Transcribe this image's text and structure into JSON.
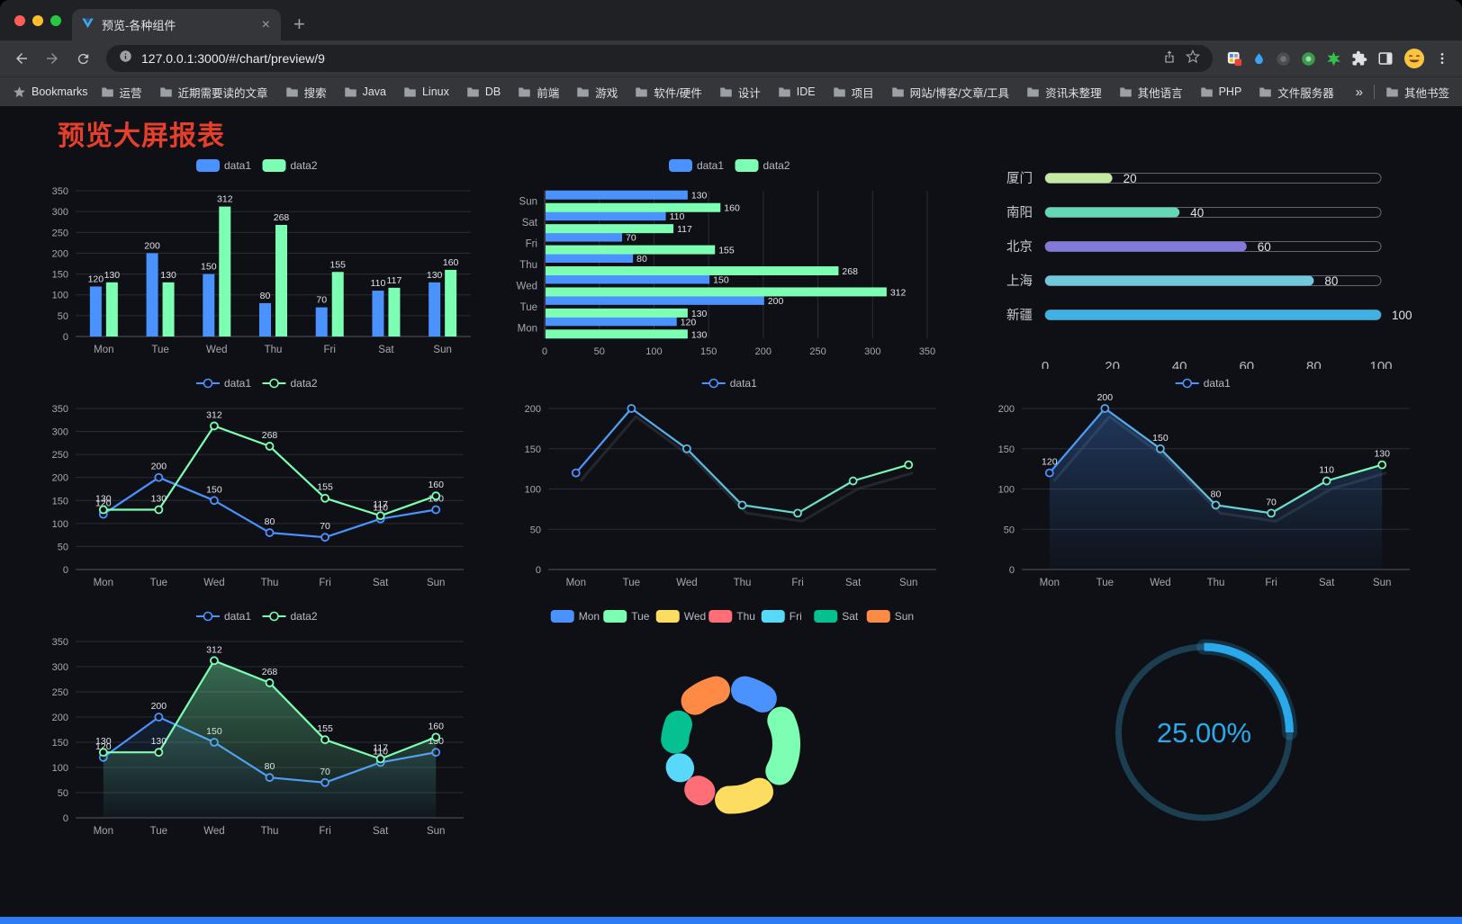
{
  "browser": {
    "traffic_lights": [
      "#ff5f57",
      "#febc2e",
      "#28c840"
    ],
    "tab": {
      "title": "预览-各种组件",
      "close_glyph": "×",
      "new_tab_glyph": "+"
    },
    "address": {
      "url": "127.0.0.1:3000/#/chart/preview/9"
    },
    "bookmarks_bar": {
      "label": "Bookmarks",
      "items": [
        "运营",
        "近期需要读的文章",
        "搜索",
        "Java",
        "Linux",
        "DB",
        "前端",
        "游戏",
        "软件/硬件",
        "设计",
        "IDE",
        "项目",
        "网站/博客/文章/工具",
        "资讯未整理",
        "其他语言",
        "PHP",
        "文件服务器"
      ],
      "overflow_glyph": "»",
      "other_bookmarks": "其他书签"
    }
  },
  "page": {
    "title": "预览大屏报表",
    "title_color": "#e6402c",
    "background": "#0e1015",
    "footer_bar_color": "#2e7bf6"
  },
  "chart_data": [
    {
      "id": "grouped-bar",
      "type": "bar",
      "legend": [
        {
          "name": "data1",
          "color": "#4992ff"
        },
        {
          "name": "data2",
          "color": "#7cffb2"
        }
      ],
      "categories": [
        "Mon",
        "Tue",
        "Wed",
        "Thu",
        "Fri",
        "Sat",
        "Sun"
      ],
      "series": [
        {
          "name": "data1",
          "color": "#4992ff",
          "values": [
            120,
            200,
            150,
            80,
            70,
            110,
            130
          ]
        },
        {
          "name": "data2",
          "color": "#7cffb2",
          "values": [
            130,
            130,
            312,
            268,
            155,
            117,
            160
          ]
        }
      ],
      "ylim": [
        0,
        350
      ],
      "ytick_step": 50,
      "show_labels": true
    },
    {
      "id": "grouped-horizontal-bar",
      "type": "hbar",
      "legend": [
        {
          "name": "data1",
          "color": "#4992ff"
        },
        {
          "name": "data2",
          "color": "#7cffb2"
        }
      ],
      "categories": [
        "Mon",
        "Tue",
        "Wed",
        "Thu",
        "Fri",
        "Sat",
        "Sun"
      ],
      "series": [
        {
          "name": "data1",
          "color": "#4992ff",
          "values": [
            120,
            200,
            150,
            80,
            70,
            110,
            130
          ]
        },
        {
          "name": "data2",
          "color": "#7cffb2",
          "values": [
            130,
            130,
            312,
            268,
            155,
            117,
            160
          ]
        }
      ],
      "xlim": [
        0,
        350
      ],
      "xtick_step": 50,
      "show_labels": true
    },
    {
      "id": "city-progress-bars",
      "type": "progress",
      "items": [
        {
          "label": "厦门",
          "value": 20,
          "color": "#c5e8a3"
        },
        {
          "label": "南阳",
          "value": 40,
          "color": "#64d8b6"
        },
        {
          "label": "北京",
          "value": 60,
          "color": "#8379d9"
        },
        {
          "label": "上海",
          "value": 80,
          "color": "#6fc8dc"
        },
        {
          "label": "新疆",
          "value": 100,
          "color": "#3fb2e5"
        }
      ],
      "xlim": [
        0,
        100
      ],
      "xticks": [
        0,
        20,
        40,
        60,
        80,
        100
      ]
    },
    {
      "id": "two-series-line",
      "type": "line",
      "legend": [
        {
          "name": "data1",
          "color": "#4992ff"
        },
        {
          "name": "data2",
          "color": "#7cffb2"
        }
      ],
      "categories": [
        "Mon",
        "Tue",
        "Wed",
        "Thu",
        "Fri",
        "Sat",
        "Sun"
      ],
      "series": [
        {
          "name": "data1",
          "color": "#4992ff",
          "values": [
            120,
            200,
            150,
            80,
            70,
            110,
            130
          ]
        },
        {
          "name": "data2",
          "color": "#7cffb2",
          "values": [
            130,
            130,
            312,
            268,
            155,
            117,
            160
          ]
        }
      ],
      "ylim": [
        0,
        350
      ],
      "ytick_step": 50,
      "show_labels": true
    },
    {
      "id": "gradient-line",
      "type": "line",
      "legend": [
        {
          "name": "data1",
          "color": "#4992ff"
        }
      ],
      "categories": [
        "Mon",
        "Tue",
        "Wed",
        "Thu",
        "Fri",
        "Sat",
        "Sun"
      ],
      "series": [
        {
          "name": "data1",
          "color": "#4992ff",
          "color2": "#7cffb2",
          "gradient": true,
          "values": [
            120,
            200,
            150,
            80,
            70,
            110,
            130
          ]
        }
      ],
      "ylim": [
        0,
        200
      ],
      "ytick_step": 50,
      "show_labels": false
    },
    {
      "id": "gradient-area-line",
      "type": "line",
      "legend": [
        {
          "name": "data1",
          "color": "#4992ff"
        }
      ],
      "categories": [
        "Mon",
        "Tue",
        "Wed",
        "Thu",
        "Fri",
        "Sat",
        "Sun"
      ],
      "series": [
        {
          "name": "data1",
          "color": "#4992ff",
          "color2": "#7cffb2",
          "gradient": true,
          "area": true,
          "area_opacity": 0.3,
          "values": [
            120,
            200,
            150,
            80,
            70,
            110,
            130
          ]
        }
      ],
      "ylim": [
        0,
        200
      ],
      "ytick_step": 50,
      "show_labels": true
    },
    {
      "id": "two-series-area-line",
      "type": "line",
      "legend": [
        {
          "name": "data1",
          "color": "#4992ff"
        },
        {
          "name": "data2",
          "color": "#7cffb2"
        }
      ],
      "categories": [
        "Mon",
        "Tue",
        "Wed",
        "Thu",
        "Fri",
        "Sat",
        "Sun"
      ],
      "series": [
        {
          "name": "data1",
          "color": "#4992ff",
          "area": true,
          "area_opacity": 0.12,
          "values": [
            120,
            200,
            150,
            80,
            70,
            110,
            130
          ]
        },
        {
          "name": "data2",
          "color": "#7cffb2",
          "area": true,
          "area_opacity": 0.38,
          "values": [
            130,
            130,
            312,
            268,
            155,
            117,
            160
          ]
        }
      ],
      "ylim": [
        0,
        350
      ],
      "ytick_step": 50,
      "show_labels": true
    },
    {
      "id": "weekday-donut",
      "type": "pie",
      "slices": [
        {
          "label": "Mon",
          "value": 120,
          "color": "#4992ff"
        },
        {
          "label": "Tue",
          "value": 200,
          "color": "#7cffb2"
        },
        {
          "label": "Wed",
          "value": 150,
          "color": "#fddd60"
        },
        {
          "label": "Thu",
          "value": 80,
          "color": "#ff6e76"
        },
        {
          "label": "Fri",
          "value": 70,
          "color": "#58d9f9"
        },
        {
          "label": "Sat",
          "value": 110,
          "color": "#05c091"
        },
        {
          "label": "Sun",
          "value": 130,
          "color": "#ff8a45"
        }
      ]
    },
    {
      "id": "percentage-gauge",
      "type": "gauge",
      "value": 25,
      "value_text": "25.00%",
      "color": "#29a9ea",
      "track_color": "#1b3f50"
    }
  ]
}
